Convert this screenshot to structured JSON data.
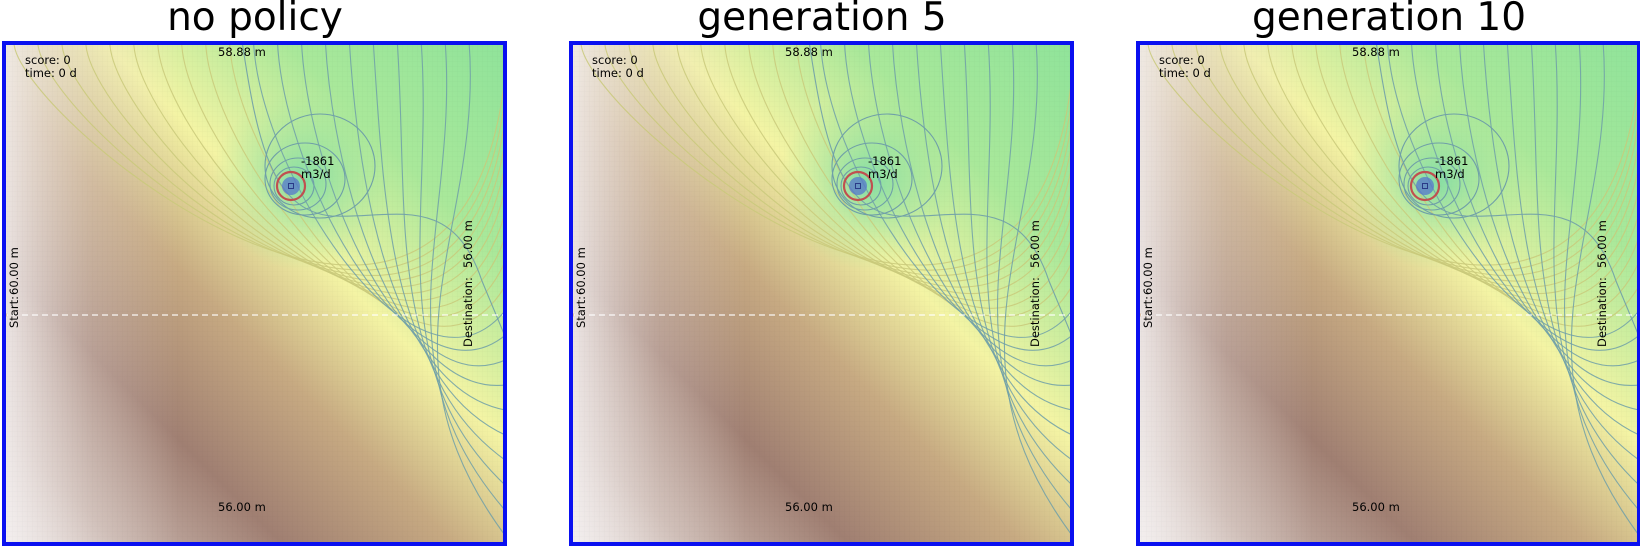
{
  "panels": [
    {
      "title": "no policy",
      "score": "score: 0",
      "time": "time: 0 d",
      "top_head": "58.88 m",
      "bottom_head": "56.00 m",
      "start_label": "Start:",
      "start_head": "60.00 m",
      "dest_label": "Destination:",
      "dest_head": "56.00 m",
      "well_rate": "-1861",
      "well_unit": "m3/d"
    },
    {
      "title": "generation 5",
      "score": "score: 0",
      "time": "time: 0 d",
      "top_head": "58.88 m",
      "bottom_head": "56.00 m",
      "start_label": "Start:",
      "start_head": "60.00 m",
      "dest_label": "Destination:",
      "dest_head": "56.00 m",
      "well_rate": "-1861",
      "well_unit": "m3/d"
    },
    {
      "title": "generation 10",
      "score": "score: 0",
      "time": "time: 0 d",
      "top_head": "58.88 m",
      "bottom_head": "56.00 m",
      "start_label": "Start:",
      "start_head": "60.00 m",
      "dest_label": "Destination:",
      "dest_head": "56.00 m",
      "well_rate": "-1861",
      "well_unit": "m3/d"
    }
  ],
  "colors": {
    "border": "#0a10f0",
    "contour_yellow": "#c9c97a",
    "contour_blue": "#6f9fa8",
    "well_ring": "#c05050",
    "well_core": "#5577cc",
    "agent": "#c08040",
    "path_line": "#ffffff"
  }
}
